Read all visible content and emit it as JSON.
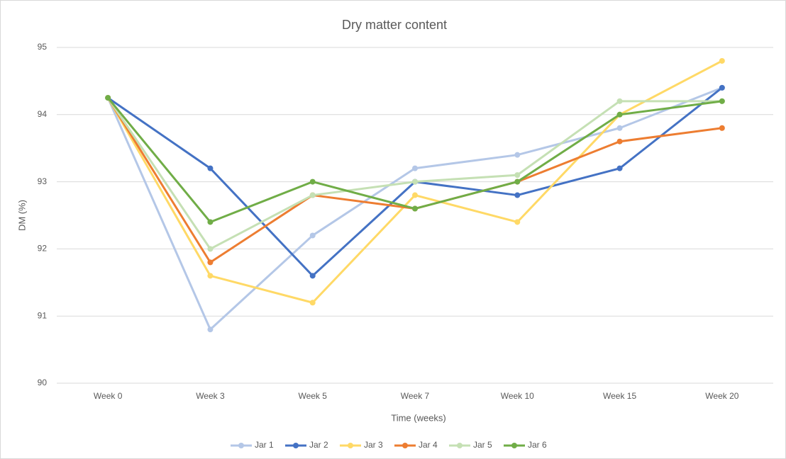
{
  "chart_data": {
    "type": "line",
    "title": "Dry matter content",
    "x_label": "Time (weeks)",
    "y_label": "DM (%)",
    "categories": [
      "Week 0",
      "Week 3",
      "Week 5",
      "Week 7",
      "Week 10",
      "Week 15",
      "Week 20"
    ],
    "series": [
      {
        "name": "Jar 1",
        "color": "#b4c7e7",
        "values": [
          94.25,
          90.8,
          92.2,
          93.2,
          93.4,
          93.8,
          94.4
        ]
      },
      {
        "name": "Jar 2",
        "color": "#4472c4",
        "values": [
          94.25,
          93.2,
          91.6,
          93.0,
          92.8,
          93.2,
          94.4
        ]
      },
      {
        "name": "Jar 3",
        "color": "#ffd966",
        "values": [
          94.25,
          91.6,
          91.2,
          92.8,
          92.4,
          94.0,
          94.8
        ]
      },
      {
        "name": "Jar 4",
        "color": "#ed7d31",
        "values": [
          94.25,
          91.8,
          92.8,
          92.6,
          93.0,
          93.6,
          93.8
        ]
      },
      {
        "name": "Jar 5",
        "color": "#c5e0b4",
        "values": [
          94.25,
          92.0,
          92.8,
          93.0,
          93.1,
          94.2,
          94.2
        ]
      },
      {
        "name": "Jar 6",
        "color": "#70ad47",
        "values": [
          94.25,
          92.4,
          93.0,
          92.6,
          93.0,
          94.0,
          94.2
        ]
      }
    ],
    "ylim": [
      90,
      95
    ],
    "yticks": [
      90,
      91,
      92,
      93,
      94,
      95
    ],
    "grid": true,
    "legend": "bottom"
  }
}
